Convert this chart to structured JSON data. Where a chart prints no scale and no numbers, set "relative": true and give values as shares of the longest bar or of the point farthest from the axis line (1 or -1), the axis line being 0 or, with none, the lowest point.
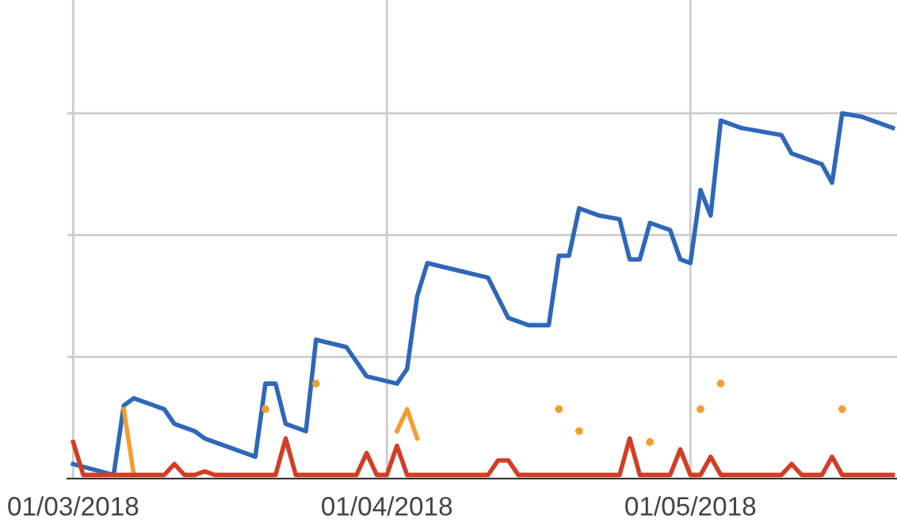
{
  "chart_data": {
    "type": "line",
    "relative": true,
    "grid": true,
    "tick_labels": "x",
    "legend": false,
    "line_style": "solid",
    "xlim": [
      "2018-02-28T10:00",
      "2018-05-21T10:00"
    ],
    "xticks": [
      {
        "value": "2018-03-01",
        "label": "01/03/2018"
      },
      {
        "value": "2018-04-01",
        "label": "01/04/2018"
      },
      {
        "value": "2018-05-01",
        "label": "01/05/2018"
      }
    ],
    "series": [
      {
        "color": "#2f67b9",
        "x": [
          "2018-03-01",
          "2018-03-05",
          "2018-03-06",
          "2018-03-07",
          "2018-03-10",
          "2018-03-11",
          "2018-03-13",
          "2018-03-14",
          "2018-03-19",
          "2018-03-20",
          "2018-03-21",
          "2018-03-22",
          "2018-03-24",
          "2018-03-25",
          "2018-03-28",
          "2018-03-30",
          "2018-04-02",
          "2018-04-03",
          "2018-04-04",
          "2018-04-05",
          "2018-04-08",
          "2018-04-11",
          "2018-04-13",
          "2018-04-15",
          "2018-04-17",
          "2018-04-18",
          "2018-04-19",
          "2018-04-20",
          "2018-04-22",
          "2018-04-24",
          "2018-04-25",
          "2018-04-26",
          "2018-04-27",
          "2018-04-29",
          "2018-04-30",
          "2018-05-01",
          "2018-05-02",
          "2018-05-03",
          "2018-05-04",
          "2018-05-06",
          "2018-05-10",
          "2018-05-11",
          "2018-05-14",
          "2018-05-15",
          "2018-05-16",
          "2018-05-18",
          "2018-05-21"
        ],
        "values": [
          0.04,
          0.01,
          0.2,
          0.22,
          0.19,
          0.15,
          0.13,
          0.11,
          0.06,
          0.26,
          0.26,
          0.15,
          0.13,
          0.38,
          0.36,
          0.28,
          0.26,
          0.3,
          0.5,
          0.59,
          0.57,
          0.55,
          0.44,
          0.42,
          0.42,
          0.61,
          0.61,
          0.74,
          0.72,
          0.71,
          0.6,
          0.6,
          0.7,
          0.68,
          0.6,
          0.59,
          0.79,
          0.72,
          0.98,
          0.96,
          0.94,
          0.89,
          0.86,
          0.81,
          1.0,
          0.99,
          0.96
        ]
      },
      {
        "color": "#f29d2d",
        "x": [
          "2018-03-06",
          "2018-03-07",
          "2018-03-08",
          "2018-03-20",
          "2018-03-21",
          "2018-03-25",
          "2018-03-26",
          "2018-04-02",
          "2018-04-03",
          "2018-04-04",
          "2018-04-05",
          "2018-04-18",
          "2018-04-19",
          "2018-04-20",
          "2018-04-21",
          "2018-04-27",
          "2018-04-28",
          "2018-05-02",
          "2018-05-03",
          "2018-05-04",
          "2018-05-05",
          "2018-05-16"
        ],
        "values": [
          0.19,
          0.01,
          null,
          0.19,
          null,
          0.26,
          null,
          0.13,
          0.19,
          0.11,
          null,
          0.19,
          null,
          0.13,
          null,
          0.1,
          null,
          0.19,
          null,
          0.26,
          null,
          0.19
        ]
      },
      {
        "color": "#d33d25",
        "x": [
          "2018-03-01",
          "2018-03-02",
          "2018-03-10",
          "2018-03-11",
          "2018-03-12",
          "2018-03-13",
          "2018-03-14",
          "2018-03-15",
          "2018-03-21",
          "2018-03-22",
          "2018-03-23",
          "2018-03-29",
          "2018-03-30",
          "2018-03-31",
          "2018-04-01",
          "2018-04-02",
          "2018-04-03",
          "2018-04-11",
          "2018-04-12",
          "2018-04-13",
          "2018-04-14",
          "2018-04-24",
          "2018-04-25",
          "2018-04-26",
          "2018-04-29",
          "2018-04-30",
          "2018-05-01",
          "2018-05-02",
          "2018-05-03",
          "2018-05-04",
          "2018-05-10",
          "2018-05-11",
          "2018-05-12",
          "2018-05-14",
          "2018-05-15",
          "2018-05-16",
          "2018-05-21"
        ],
        "values": [
          0.1,
          0.01,
          0.01,
          0.04,
          0.01,
          0.01,
          0.02,
          0.01,
          0.01,
          0.11,
          0.01,
          0.01,
          0.07,
          0.01,
          0.01,
          0.09,
          0.01,
          0.01,
          0.05,
          0.05,
          0.01,
          0.01,
          0.11,
          0.01,
          0.01,
          0.08,
          0.01,
          0.01,
          0.06,
          0.01,
          0.01,
          0.04,
          0.01,
          0.01,
          0.06,
          0.01,
          0.01
        ]
      }
    ]
  }
}
